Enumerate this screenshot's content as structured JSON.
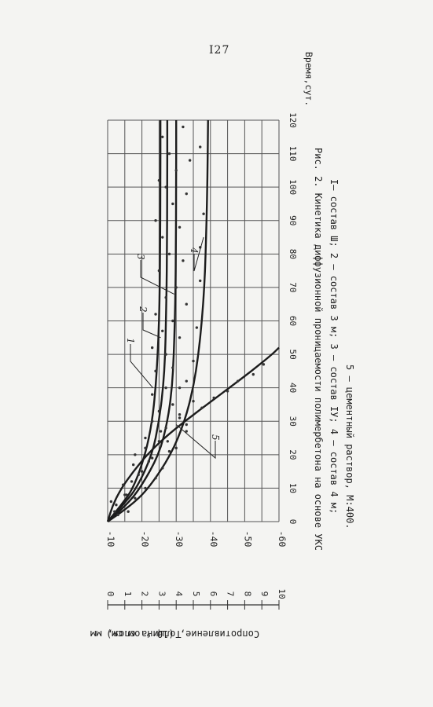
{
  "page_number": "I27",
  "caption": {
    "line1": "Рис. 2. Кинетика диффузионной проницаемости полимербетона на основе УКС",
    "line2": "I– состав Ш; 2 – состав 3 м; 3 – состав IУ; 4 – состав 4 м;",
    "line3": "5 – цементный раствор, М:400."
  },
  "chart_data": {
    "type": "line",
    "xlabel": "Время,сут.",
    "ylabel_left": "Сопротивление, (10⁻⁶ ом.см)",
    "ylabel_right": "Толщина слоя, мм",
    "x_ticks": [
      "0",
      "10",
      "20",
      "30",
      "40",
      "50",
      "60",
      "70",
      "80",
      "90",
      "100",
      "110",
      "120"
    ],
    "xlim": [
      0,
      120
    ],
    "resistance_ticks": [
      "-10",
      "-20",
      "-30",
      "-40",
      "-50",
      "-60"
    ],
    "resistance_lim": [
      -10,
      -60
    ],
    "thickness_ticks": [
      "0",
      "1",
      "2",
      "3",
      "4",
      "5",
      "6",
      "7",
      "8",
      "9",
      "10"
    ],
    "thickness_lim": [
      0,
      10
    ],
    "grid": true,
    "series": [
      {
        "name": "1",
        "x": [
          0,
          5,
          10,
          20,
          30,
          40,
          50,
          60,
          70,
          80,
          100,
          120
        ],
        "y": [
          -10,
          -14,
          -17.5,
          -21,
          -23,
          -24,
          -24.6,
          -25,
          -25.2,
          -25.3,
          -25.4,
          -25.4
        ]
      },
      {
        "name": "2",
        "x": [
          0,
          5,
          10,
          20,
          30,
          40,
          50,
          60,
          70,
          80,
          100,
          120
        ],
        "y": [
          -10,
          -14.5,
          -18.5,
          -23,
          -25,
          -26.2,
          -26.8,
          -27,
          -27.2,
          -27.3,
          -27.4,
          -27.4
        ]
      },
      {
        "name": "3",
        "x": [
          0,
          5,
          10,
          20,
          30,
          40,
          50,
          60,
          70,
          80,
          100,
          120
        ],
        "y": [
          -10,
          -15.5,
          -19.5,
          -25,
          -27.5,
          -28.8,
          -29.3,
          -29.6,
          -29.8,
          -29.9,
          -30,
          -30
        ]
      },
      {
        "name": "4",
        "x": [
          0,
          5,
          10,
          20,
          30,
          40,
          50,
          60,
          70,
          80,
          100,
          120
        ],
        "y": [
          -10,
          -17,
          -22,
          -28.5,
          -32.5,
          -35,
          -36.5,
          -37.5,
          -38.2,
          -38.6,
          -39.1,
          -39.3
        ]
      },
      {
        "name": "5",
        "axis": "thickness",
        "x": [
          0,
          5,
          10,
          15,
          20,
          25,
          30,
          35,
          40,
          45,
          50,
          52
        ],
        "y": [
          0,
          0.3,
          0.8,
          1.5,
          2.3,
          3.3,
          4.5,
          5.8,
          7.1,
          8.4,
          9.6,
          10
        ]
      }
    ],
    "scatter_points": [
      [
        2,
        -13
      ],
      [
        3,
        -16
      ],
      [
        5,
        -12.5
      ],
      [
        7,
        -18
      ],
      [
        8,
        -15
      ],
      [
        10,
        -21
      ],
      [
        12,
        -17
      ],
      [
        13,
        -24
      ],
      [
        15,
        -20
      ],
      [
        16,
        -26
      ],
      [
        18,
        -22
      ],
      [
        20,
        -18
      ],
      [
        21,
        -28
      ],
      [
        22,
        -30
      ],
      [
        24,
        -25
      ],
      [
        25,
        -21
      ],
      [
        27,
        -33
      ],
      [
        28,
        -27
      ],
      [
        30,
        -23
      ],
      [
        31,
        -31
      ],
      [
        33,
        -25
      ],
      [
        35,
        -29
      ],
      [
        36,
        -35
      ],
      [
        38,
        -23
      ],
      [
        40,
        -27
      ],
      [
        40,
        -31
      ],
      [
        42,
        -33
      ],
      [
        45,
        -24
      ],
      [
        46,
        -29
      ],
      [
        48,
        -35
      ],
      [
        50,
        -27
      ],
      [
        52,
        -23
      ],
      [
        55,
        -31
      ],
      [
        57,
        -26
      ],
      [
        58,
        -36
      ],
      [
        60,
        -29
      ],
      [
        62,
        -24
      ],
      [
        65,
        -33
      ],
      [
        67,
        -27
      ],
      [
        70,
        -30
      ],
      [
        72,
        -37
      ],
      [
        75,
        -25
      ],
      [
        78,
        -32
      ],
      [
        80,
        -28
      ],
      [
        82,
        -37
      ],
      [
        85,
        -26
      ],
      [
        88,
        -31
      ],
      [
        90,
        -24
      ],
      [
        92,
        -38
      ],
      [
        95,
        -29
      ],
      [
        98,
        -33
      ],
      [
        100,
        -27
      ],
      [
        102,
        -25
      ],
      [
        105,
        -30
      ],
      [
        108,
        -34
      ],
      [
        110,
        -28
      ],
      [
        112,
        -37
      ],
      [
        115,
        -26
      ],
      [
        118,
        -32
      ]
    ],
    "scatter_points_thickness": [
      [
        3,
        0.4
      ],
      [
        6,
        0.2
      ],
      [
        8,
        1.1
      ],
      [
        11,
        0.9
      ],
      [
        14,
        1.8
      ],
      [
        17,
        1.5
      ],
      [
        19,
        2.6
      ],
      [
        22,
        2.2
      ],
      [
        24,
        3.5
      ],
      [
        27,
        3.1
      ],
      [
        29,
        4.6
      ],
      [
        32,
        4.2
      ],
      [
        34,
        5.5
      ],
      [
        37,
        6.2
      ],
      [
        39,
        7.0
      ],
      [
        42,
        7.6
      ],
      [
        44,
        8.5
      ],
      [
        47,
        9.1
      ]
    ]
  }
}
